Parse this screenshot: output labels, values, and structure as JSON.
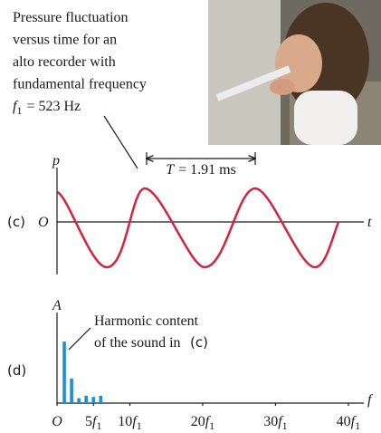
{
  "caption": {
    "lines": [
      "Pressure fluctuation",
      "versus time for an",
      "alto recorder with",
      "fundamental frequency"
    ],
    "frequency": {
      "symbol": "f",
      "subscript": "1",
      "text": "= 523 Hz"
    }
  },
  "waveform": {
    "panel_label": "(c)",
    "y_label": "p",
    "origin_label": "O",
    "x_label": "t",
    "period": {
      "symbol": "T",
      "text": "= 1.91 ms"
    }
  },
  "spectrum": {
    "panel_label": "(d)",
    "y_label": "A",
    "x_label": "f",
    "annotation": {
      "lines": [
        "Harmonic content",
        "of the sound in"
      ],
      "ref": "(c)"
    },
    "harmonics": [
      1,
      2,
      3,
      4,
      5,
      6
    ],
    "values": [
      1,
      0.4,
      0.08,
      0.12,
      0.1,
      0.12
    ],
    "color": "#1f8fd0",
    "xlim": [
      0,
      42
    ],
    "ylim": [
      0,
      1.4
    ],
    "xticks": [
      {
        "value": 0,
        "label": "O"
      },
      {
        "value": 5,
        "label": "5",
        "symbol": "f",
        "subscript": "1"
      },
      {
        "value": 10,
        "label": "10",
        "symbol": "f",
        "subscript": "1"
      },
      {
        "value": 20,
        "label": "20",
        "symbol": "f",
        "subscript": "1"
      },
      {
        "value": 30,
        "label": "30",
        "symbol": "f",
        "subscript": "1"
      },
      {
        "value": 40,
        "label": "40",
        "symbol": "f",
        "subscript": "1"
      }
    ]
  }
}
